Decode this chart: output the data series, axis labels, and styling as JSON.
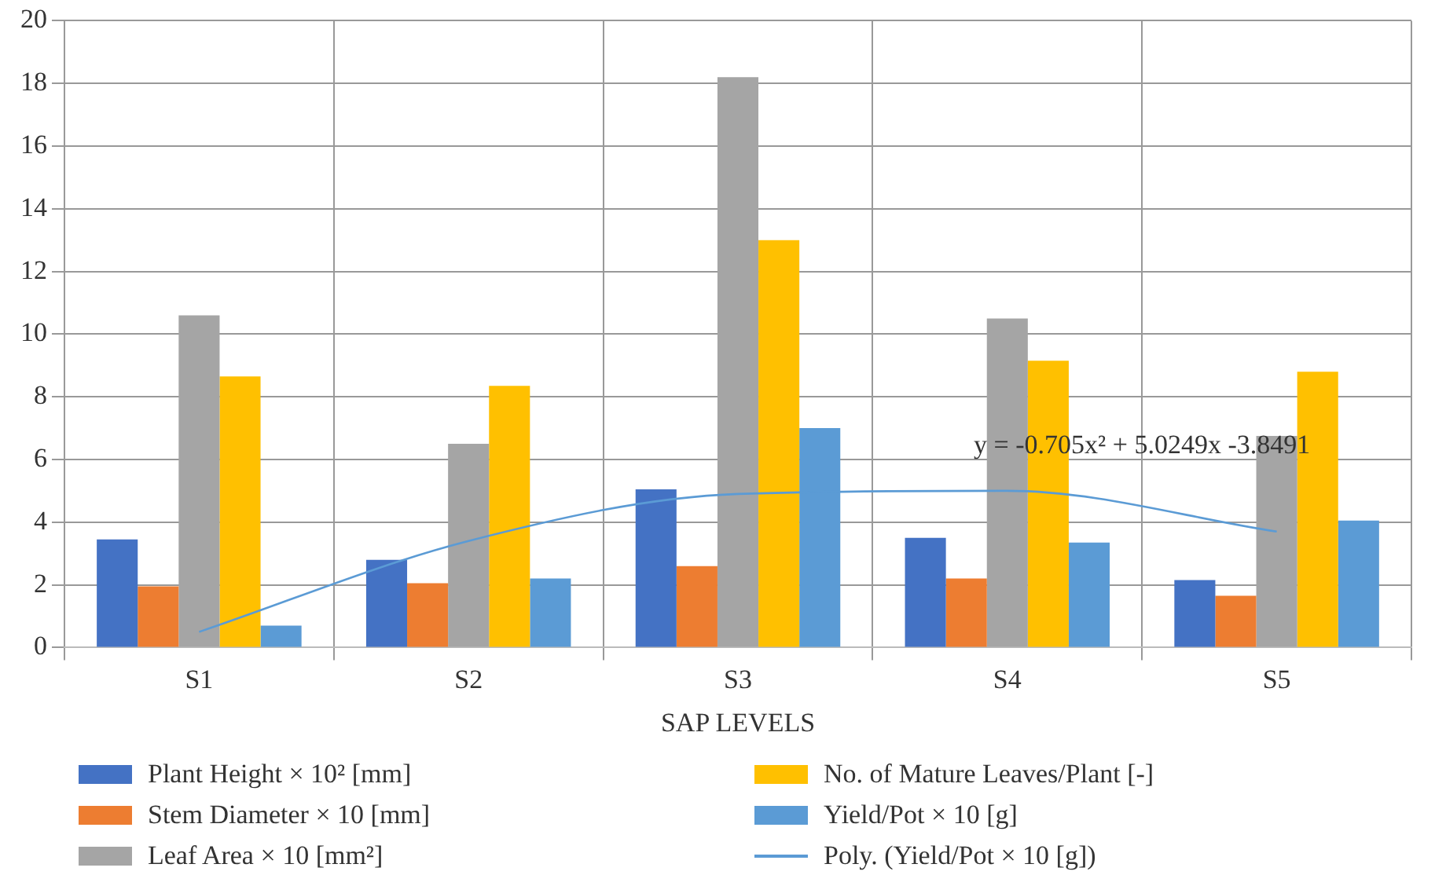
{
  "chart_data": {
    "type": "bar",
    "xlabel": "SAP LEVELS",
    "categories": [
      "S1",
      "S2",
      "S3",
      "S4",
      "S5"
    ],
    "series": [
      {
        "name": "Plant Height × 10² [mm]",
        "color": "#4472c4",
        "values": [
          3.45,
          2.8,
          5.05,
          3.5,
          2.15
        ]
      },
      {
        "name": "Stem Diameter × 10 [mm]",
        "color": "#ed7d31",
        "values": [
          1.95,
          2.05,
          2.6,
          2.2,
          1.65
        ]
      },
      {
        "name": "Leaf Area × 10 [mm²]",
        "color": "#a5a5a5",
        "values": [
          10.6,
          6.5,
          18.2,
          10.5,
          6.75
        ]
      },
      {
        "name": "No. of Mature Leaves/Plant [-]",
        "color": "#ffc000",
        "values": [
          8.65,
          8.35,
          13.0,
          9.15,
          8.8
        ]
      },
      {
        "name": "Yield/Pot × 10 [g]",
        "color": "#5b9bd5",
        "values": [
          0.7,
          2.2,
          7.0,
          3.35,
          4.05
        ]
      },
      {
        "name": "Poly. (Yield/Pot × 10 [g])",
        "type": "line",
        "color": "#5b9bd5",
        "values": [
          0.5,
          3.4,
          4.9,
          5.0,
          3.7
        ]
      }
    ],
    "ylim": [
      0,
      20
    ],
    "yticks": [
      0,
      2,
      4,
      6,
      8,
      10,
      12,
      14,
      16,
      18,
      20
    ],
    "grid": true,
    "legend": "bottom",
    "marker": "none",
    "annotations": [
      "y = -0.705x² + 5.0249x -3.8491"
    ]
  }
}
